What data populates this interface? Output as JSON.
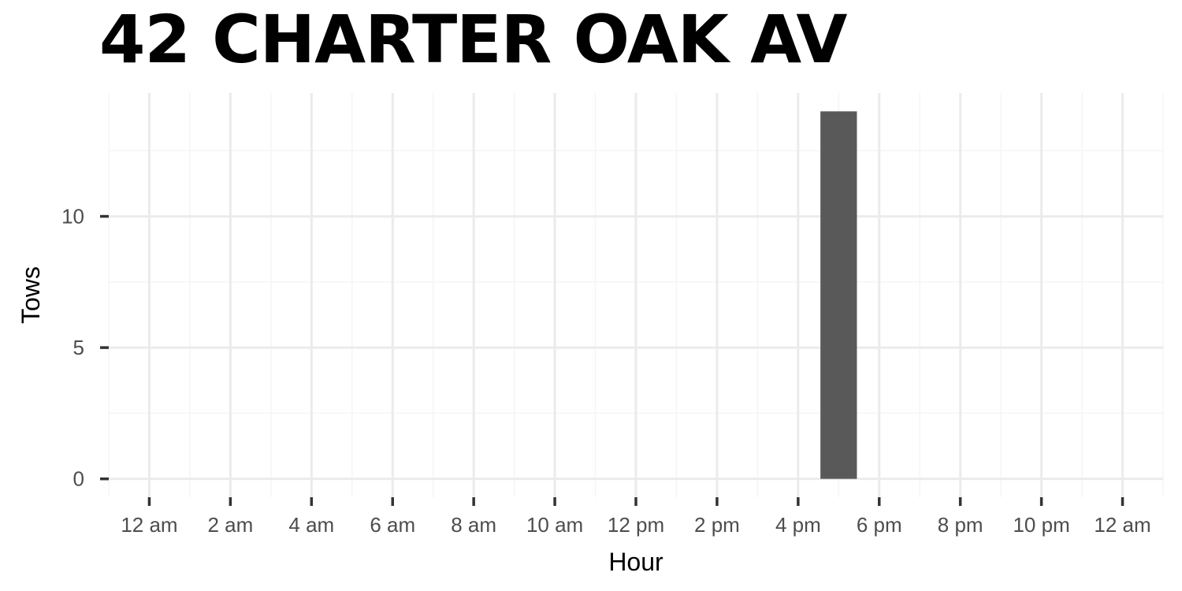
{
  "chart_data": {
    "type": "bar",
    "title": "42 CHARTER OAK AV",
    "xlabel": "Hour",
    "ylabel": "Tows",
    "x_ticks": [
      {
        "hour": 0,
        "label": "12 am"
      },
      {
        "hour": 2,
        "label": "2 am"
      },
      {
        "hour": 4,
        "label": "4 am"
      },
      {
        "hour": 6,
        "label": "6 am"
      },
      {
        "hour": 8,
        "label": "8 am"
      },
      {
        "hour": 10,
        "label": "10 am"
      },
      {
        "hour": 12,
        "label": "12 pm"
      },
      {
        "hour": 14,
        "label": "2 pm"
      },
      {
        "hour": 16,
        "label": "4 pm"
      },
      {
        "hour": 18,
        "label": "6 pm"
      },
      {
        "hour": 20,
        "label": "8 pm"
      },
      {
        "hour": 22,
        "label": "10 pm"
      },
      {
        "hour": 24,
        "label": "12 am"
      }
    ],
    "y_ticks": [
      0,
      5,
      10
    ],
    "xlim": [
      -1,
      25
    ],
    "ylim": [
      -0.7,
      14.7
    ],
    "grid": true,
    "bars": [
      {
        "hour": 17,
        "value": 14
      }
    ],
    "colors": {
      "bar": "#595959",
      "grid_major": "#ebebeb",
      "grid_minor": "#f5f5f5",
      "tick": "#333333",
      "tick_text": "#4d4d4d"
    }
  }
}
